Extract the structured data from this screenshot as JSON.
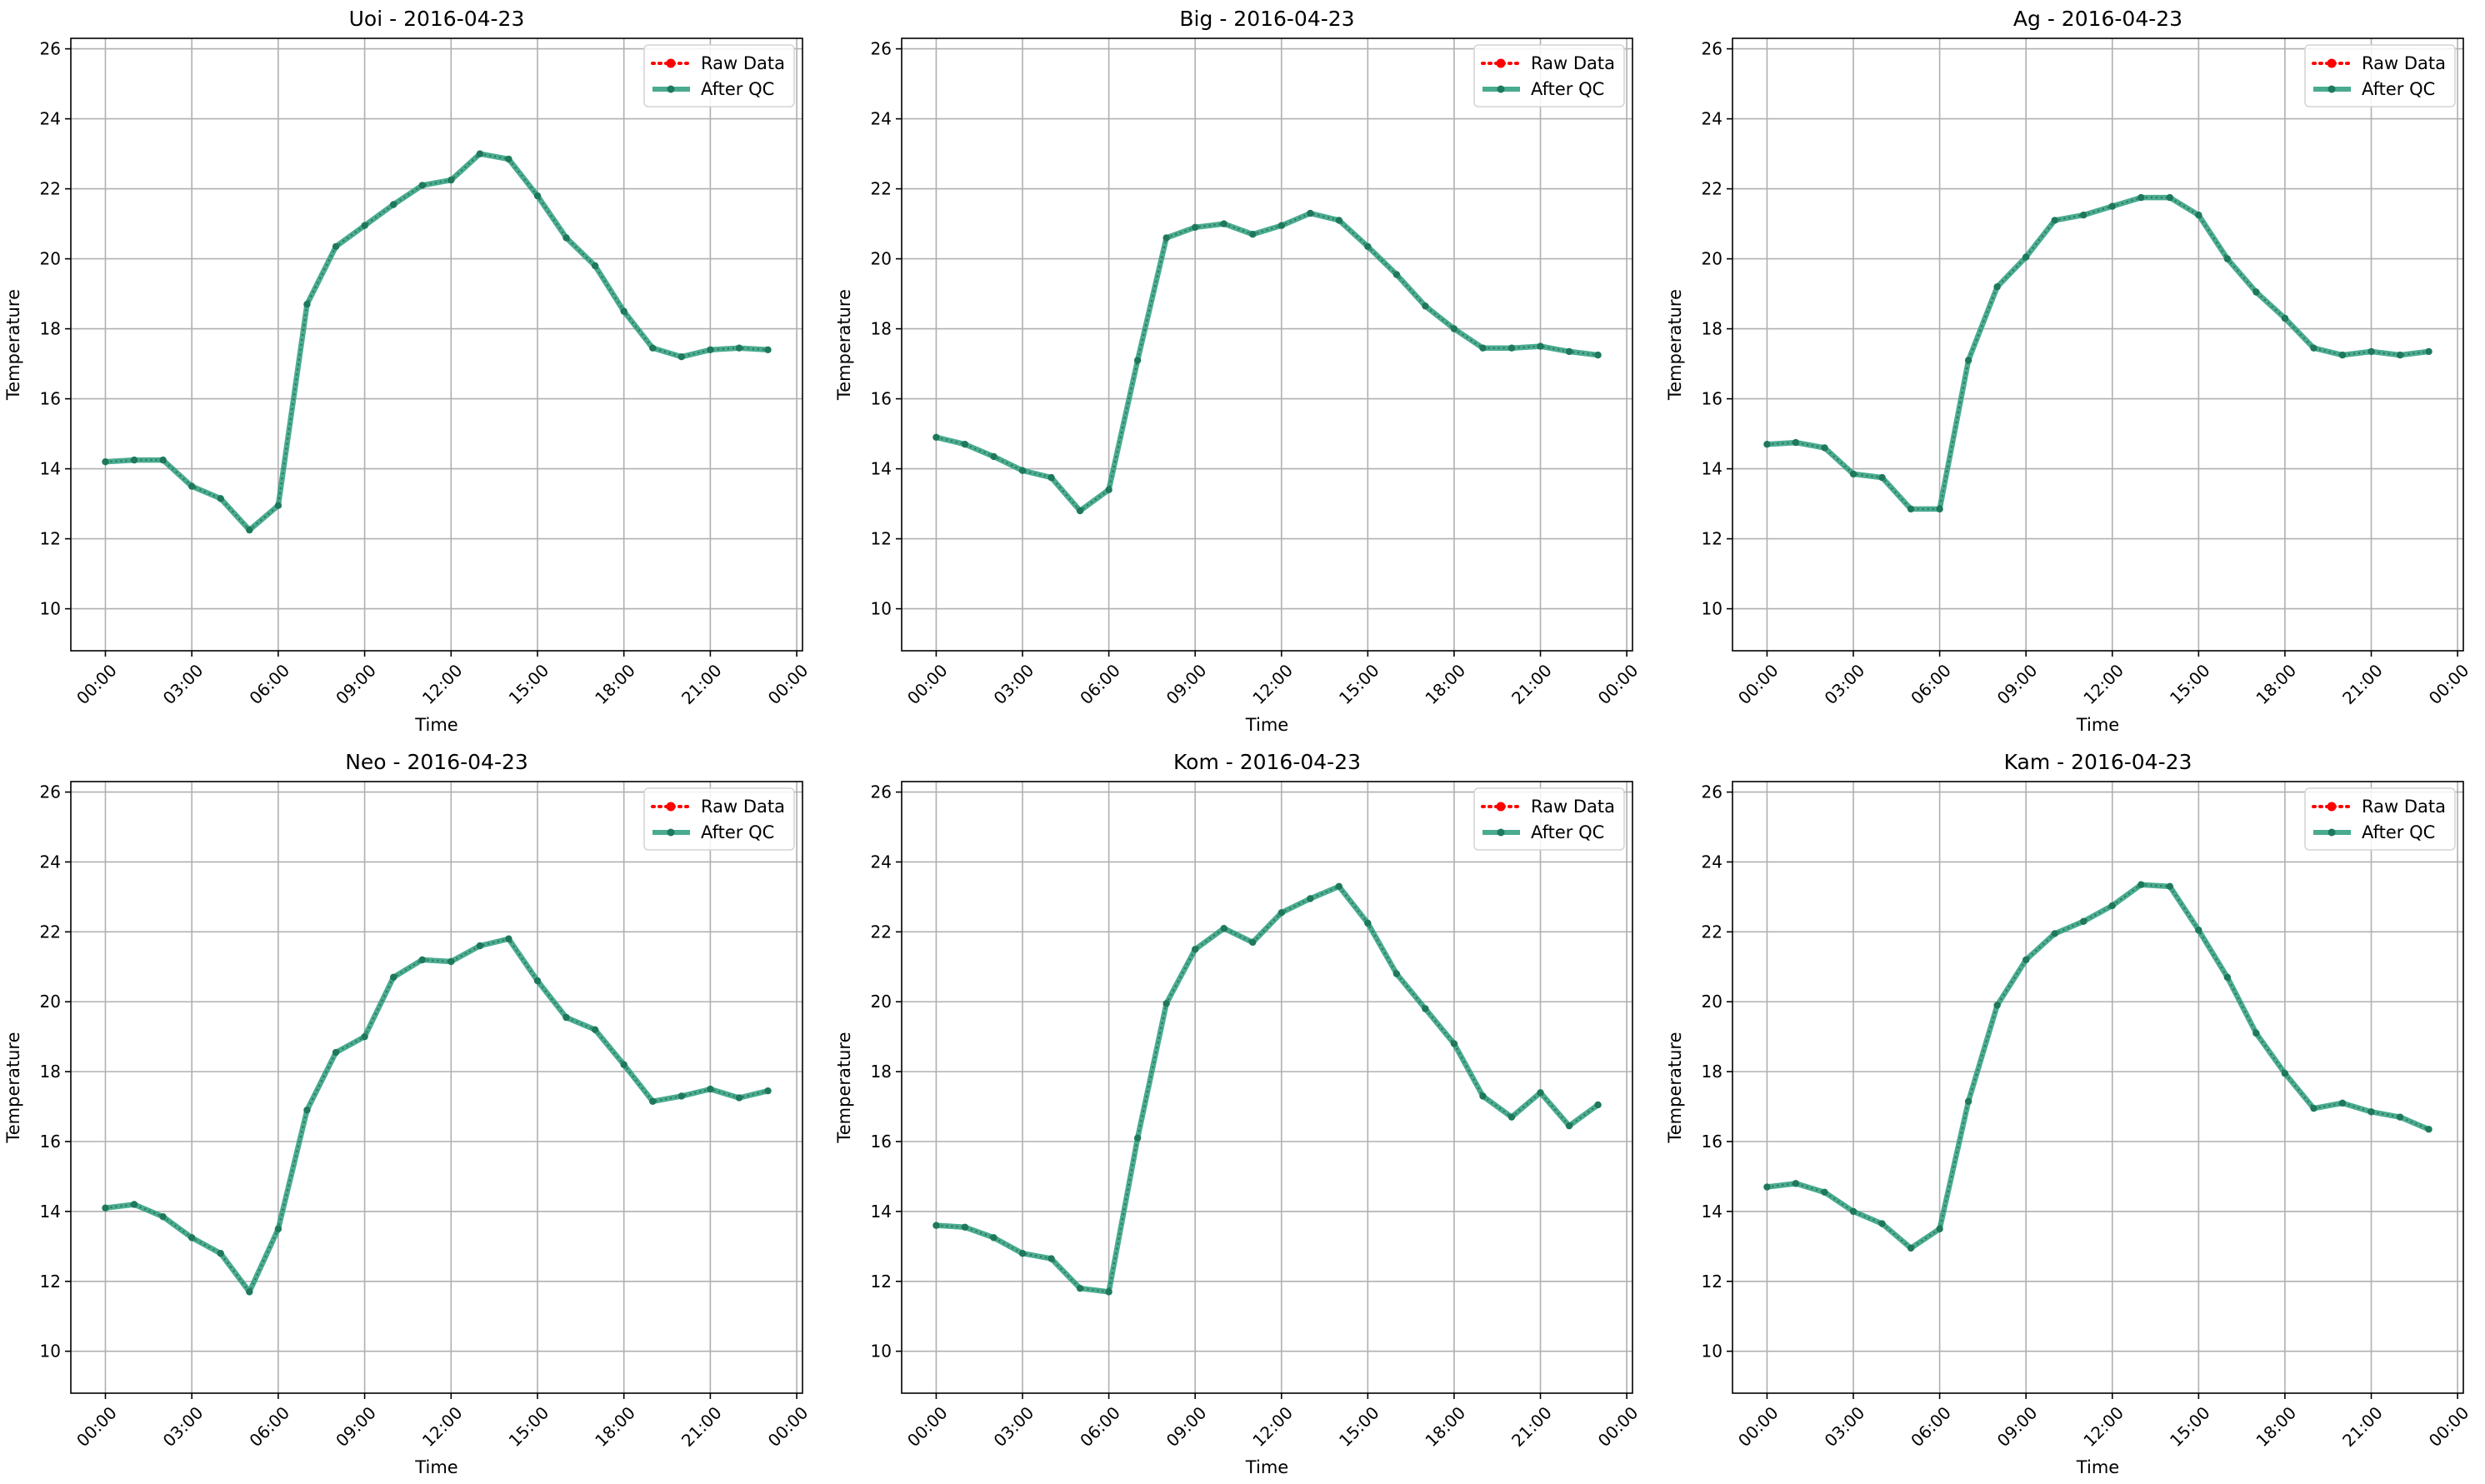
{
  "figure": {
    "xlabel": "Time",
    "ylabel": "Temperature",
    "x_tick_labels": [
      "00:00",
      "03:00",
      "06:00",
      "09:00",
      "12:00",
      "15:00",
      "18:00",
      "21:00",
      "00:00"
    ],
    "y_tick_labels": [
      "10",
      "12",
      "14",
      "16",
      "18",
      "20",
      "22",
      "24",
      "26"
    ],
    "legend": {
      "raw": "Raw Data",
      "qc": "After QC"
    }
  },
  "colors": {
    "raw": "#ff0000",
    "qc": "#2a9d7c",
    "marker": "#1d7a5c",
    "grid": "#b0b0b0",
    "axis": "#000000"
  },
  "chart_data": [
    {
      "type": "line",
      "title": "Uoi - 2016-04-23",
      "xlabel": "Time",
      "ylabel": "Temperature",
      "x": [
        "00:00",
        "01:00",
        "02:00",
        "03:00",
        "04:00",
        "05:00",
        "06:00",
        "07:00",
        "08:00",
        "09:00",
        "10:00",
        "11:00",
        "12:00",
        "13:00",
        "14:00",
        "15:00",
        "16:00",
        "17:00",
        "18:00",
        "19:00",
        "20:00",
        "21:00",
        "22:00",
        "23:00"
      ],
      "ylim": [
        8.8,
        26.3
      ],
      "xlim_hours": [
        -1.2,
        24.2
      ],
      "grid": true,
      "legend_position": "top-right",
      "series": [
        {
          "name": "Raw Data",
          "values": [
            14.2,
            14.25,
            14.25,
            13.5,
            13.15,
            12.25,
            12.95,
            18.7,
            20.35,
            20.95,
            21.55,
            22.1,
            22.25,
            23.0,
            22.85,
            21.8,
            20.6,
            19.8,
            18.5,
            17.45,
            17.2,
            17.4,
            17.45,
            17.4
          ]
        },
        {
          "name": "After QC",
          "values": [
            14.2,
            14.25,
            14.25,
            13.5,
            13.15,
            12.25,
            12.95,
            18.7,
            20.35,
            20.95,
            21.55,
            22.1,
            22.25,
            23.0,
            22.85,
            21.8,
            20.6,
            19.8,
            18.5,
            17.45,
            17.2,
            17.4,
            17.45,
            17.4
          ]
        }
      ]
    },
    {
      "type": "line",
      "title": "Big - 2016-04-23",
      "xlabel": "Time",
      "ylabel": "Temperature",
      "x": [
        "00:00",
        "01:00",
        "02:00",
        "03:00",
        "04:00",
        "05:00",
        "06:00",
        "07:00",
        "08:00",
        "09:00",
        "10:00",
        "11:00",
        "12:00",
        "13:00",
        "14:00",
        "15:00",
        "16:00",
        "17:00",
        "18:00",
        "19:00",
        "20:00",
        "21:00",
        "22:00",
        "23:00"
      ],
      "ylim": [
        8.8,
        26.3
      ],
      "xlim_hours": [
        -1.2,
        24.2
      ],
      "grid": true,
      "legend_position": "top-right",
      "series": [
        {
          "name": "Raw Data",
          "values": [
            14.9,
            14.7,
            14.35,
            13.95,
            13.75,
            12.8,
            13.4,
            17.1,
            20.6,
            20.9,
            21.0,
            20.7,
            20.95,
            21.3,
            21.1,
            20.35,
            19.55,
            18.65,
            18.0,
            17.45,
            17.45,
            17.5,
            17.35,
            17.25
          ]
        },
        {
          "name": "After QC",
          "values": [
            14.9,
            14.7,
            14.35,
            13.95,
            13.75,
            12.8,
            13.4,
            17.1,
            20.6,
            20.9,
            21.0,
            20.7,
            20.95,
            21.3,
            21.1,
            20.35,
            19.55,
            18.65,
            18.0,
            17.45,
            17.45,
            17.5,
            17.35,
            17.25
          ]
        }
      ]
    },
    {
      "type": "line",
      "title": "Ag - 2016-04-23",
      "xlabel": "Time",
      "ylabel": "Temperature",
      "x": [
        "00:00",
        "01:00",
        "02:00",
        "03:00",
        "04:00",
        "05:00",
        "06:00",
        "07:00",
        "08:00",
        "09:00",
        "10:00",
        "11:00",
        "12:00",
        "13:00",
        "14:00",
        "15:00",
        "16:00",
        "17:00",
        "18:00",
        "19:00",
        "20:00",
        "21:00",
        "22:00",
        "23:00"
      ],
      "ylim": [
        8.8,
        26.3
      ],
      "xlim_hours": [
        -1.2,
        24.2
      ],
      "grid": true,
      "legend_position": "top-right",
      "series": [
        {
          "name": "Raw Data",
          "values": [
            14.7,
            14.75,
            14.6,
            13.85,
            13.75,
            12.85,
            12.85,
            17.1,
            19.2,
            20.05,
            21.1,
            21.25,
            21.5,
            21.75,
            21.75,
            21.25,
            20.0,
            19.05,
            18.3,
            17.45,
            17.25,
            17.35,
            17.25,
            17.35
          ]
        },
        {
          "name": "After QC",
          "values": [
            14.7,
            14.75,
            14.6,
            13.85,
            13.75,
            12.85,
            12.85,
            17.1,
            19.2,
            20.05,
            21.1,
            21.25,
            21.5,
            21.75,
            21.75,
            21.25,
            20.0,
            19.05,
            18.3,
            17.45,
            17.25,
            17.35,
            17.25,
            17.35
          ]
        }
      ]
    },
    {
      "type": "line",
      "title": "Neo - 2016-04-23",
      "xlabel": "Time",
      "ylabel": "Temperature",
      "x": [
        "00:00",
        "01:00",
        "02:00",
        "03:00",
        "04:00",
        "05:00",
        "06:00",
        "07:00",
        "08:00",
        "09:00",
        "10:00",
        "11:00",
        "12:00",
        "13:00",
        "14:00",
        "15:00",
        "16:00",
        "17:00",
        "18:00",
        "19:00",
        "20:00",
        "21:00",
        "22:00",
        "23:00"
      ],
      "ylim": [
        8.8,
        26.3
      ],
      "xlim_hours": [
        -1.2,
        24.2
      ],
      "grid": true,
      "legend_position": "top-right",
      "series": [
        {
          "name": "Raw Data",
          "values": [
            14.1,
            14.2,
            13.85,
            13.25,
            12.8,
            11.7,
            13.5,
            16.9,
            18.55,
            19.0,
            20.7,
            21.2,
            21.15,
            21.6,
            21.8,
            20.6,
            19.55,
            19.2,
            18.2,
            17.15,
            17.3,
            17.5,
            17.25,
            17.45
          ]
        },
        {
          "name": "After QC",
          "values": [
            14.1,
            14.2,
            13.85,
            13.25,
            12.8,
            11.7,
            13.5,
            16.9,
            18.55,
            19.0,
            20.7,
            21.2,
            21.15,
            21.6,
            21.8,
            20.6,
            19.55,
            19.2,
            18.2,
            17.15,
            17.3,
            17.5,
            17.25,
            17.45
          ]
        }
      ]
    },
    {
      "type": "line",
      "title": "Kom - 2016-04-23",
      "xlabel": "Time",
      "ylabel": "Temperature",
      "x": [
        "00:00",
        "01:00",
        "02:00",
        "03:00",
        "04:00",
        "05:00",
        "06:00",
        "07:00",
        "08:00",
        "09:00",
        "10:00",
        "11:00",
        "12:00",
        "13:00",
        "14:00",
        "15:00",
        "16:00",
        "17:00",
        "18:00",
        "19:00",
        "20:00",
        "21:00",
        "22:00",
        "23:00"
      ],
      "ylim": [
        8.8,
        26.3
      ],
      "xlim_hours": [
        -1.2,
        24.2
      ],
      "grid": true,
      "legend_position": "top-right",
      "series": [
        {
          "name": "Raw Data",
          "values": [
            13.6,
            13.55,
            13.25,
            12.8,
            12.65,
            11.8,
            11.7,
            16.1,
            19.95,
            21.5,
            22.1,
            21.7,
            22.55,
            22.95,
            23.3,
            22.25,
            20.8,
            19.8,
            18.8,
            17.3,
            16.7,
            17.4,
            16.45,
            17.05
          ]
        },
        {
          "name": "After QC",
          "values": [
            13.6,
            13.55,
            13.25,
            12.8,
            12.65,
            11.8,
            11.7,
            16.1,
            19.95,
            21.5,
            22.1,
            21.7,
            22.55,
            22.95,
            23.3,
            22.25,
            20.8,
            19.8,
            18.8,
            17.3,
            16.7,
            17.4,
            16.45,
            17.05
          ]
        }
      ]
    },
    {
      "type": "line",
      "title": "Kam - 2016-04-23",
      "xlabel": "Time",
      "ylabel": "Temperature",
      "x": [
        "00:00",
        "01:00",
        "02:00",
        "03:00",
        "04:00",
        "05:00",
        "06:00",
        "07:00",
        "08:00",
        "09:00",
        "10:00",
        "11:00",
        "12:00",
        "13:00",
        "14:00",
        "15:00",
        "16:00",
        "17:00",
        "18:00",
        "19:00",
        "20:00",
        "21:00",
        "22:00",
        "23:00"
      ],
      "ylim": [
        8.8,
        26.3
      ],
      "xlim_hours": [
        -1.2,
        24.2
      ],
      "grid": true,
      "legend_position": "top-right",
      "series": [
        {
          "name": "Raw Data",
          "values": [
            14.7,
            14.8,
            14.55,
            14.0,
            13.65,
            12.95,
            13.5,
            17.15,
            19.9,
            21.2,
            21.95,
            22.3,
            22.75,
            23.35,
            23.3,
            22.05,
            20.7,
            19.1,
            17.95,
            16.95,
            17.1,
            16.85,
            16.7,
            16.35
          ]
        },
        {
          "name": "After QC",
          "values": [
            14.7,
            14.8,
            14.55,
            14.0,
            13.65,
            12.95,
            13.5,
            17.15,
            19.9,
            21.2,
            21.95,
            22.3,
            22.75,
            23.35,
            23.3,
            22.05,
            20.7,
            19.1,
            17.95,
            16.95,
            17.1,
            16.85,
            16.7,
            16.35
          ]
        }
      ]
    }
  ]
}
